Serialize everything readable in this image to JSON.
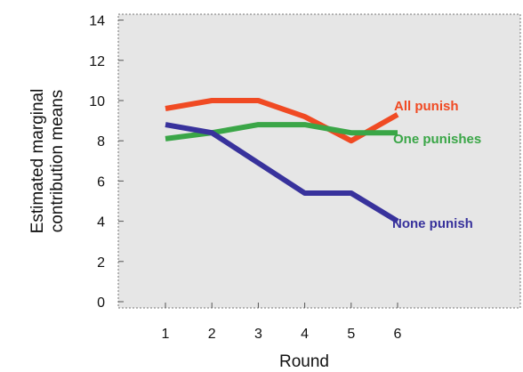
{
  "chart_data": {
    "type": "line",
    "title": "",
    "xlabel": "Round",
    "ylabel_lines": [
      "Estimated marginal",
      "contribution means"
    ],
    "x": [
      1,
      2,
      3,
      4,
      5,
      6
    ],
    "x_ticks": [
      "1",
      "2",
      "3",
      "4",
      "5",
      "6"
    ],
    "y_ticks": [
      "0",
      "2",
      "4",
      "6",
      "8",
      "10",
      "12",
      "14"
    ],
    "ylim": [
      0,
      14
    ],
    "xlim": [
      0.2,
      8.0
    ],
    "grid": false,
    "legend": "inline labels at line ends",
    "colors": {
      "plot_background": "#e6e6e6",
      "frame": "#777777"
    },
    "series": [
      {
        "name": "All punish",
        "color": "#f04a23",
        "values": [
          9.6,
          10.0,
          10.0,
          9.2,
          8.0,
          9.3
        ]
      },
      {
        "name": "One punishes",
        "color": "#3aa647",
        "values": [
          8.1,
          8.4,
          8.8,
          8.8,
          8.4,
          8.4
        ]
      },
      {
        "name": "None punish",
        "color": "#38329c",
        "values": [
          8.8,
          8.4,
          6.9,
          5.4,
          5.4,
          4.0
        ]
      }
    ]
  }
}
